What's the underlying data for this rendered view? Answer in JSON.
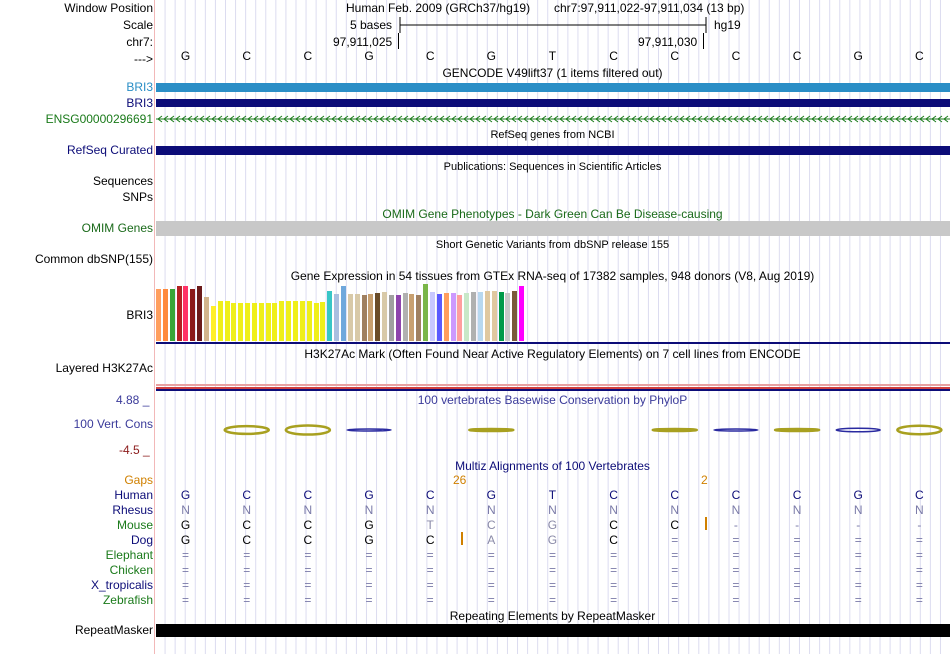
{
  "ruler": {
    "window_label": "Window Position",
    "scale_label": "Scale",
    "chrom_label": "chr7:",
    "arrow_label": "--->",
    "assembly": "Human Feb. 2009 (GRCh37/hg19)",
    "position": "chr7:97,911,022-97,911,034 (13 bp)",
    "scale_text": "5 bases",
    "scale_db": "hg19",
    "coord_left": "97,911,025",
    "coord_right": "97,911,030",
    "bases": [
      "G",
      "C",
      "C",
      "G",
      "C",
      "G",
      "T",
      "C",
      "C",
      "C",
      "C",
      "G",
      "C"
    ]
  },
  "gencode": {
    "title": "GENCODE V49lift37 (1 items filtered out)",
    "rows": [
      "BRI3",
      "BRI3",
      "ENSG00000296691"
    ],
    "colors": [
      "#2a8ec6",
      "#0c0c78",
      "#1a7a1a"
    ]
  },
  "refseq": {
    "title": "RefSeq genes from NCBI",
    "label": "RefSeq Curated",
    "color": "#0c0c78"
  },
  "pubs": {
    "title": "Publications: Sequences in Scientific Articles",
    "labels": [
      "Sequences",
      "SNPs"
    ]
  },
  "omim": {
    "title": "OMIM Gene Phenotypes - Dark Green Can Be Disease-causing",
    "label": "OMIM Genes",
    "color": "#c8c8c8",
    "text_color": "#1a6a1a"
  },
  "snp": {
    "title": "Short Genetic Variants from dbSNP release 155",
    "label": "Common dbSNP(155)"
  },
  "gtex": {
    "title": "Gene Expression in 54 tissues from GTEx RNA-seq of 17382 samples, 948 donors (V8, Aug 2019)",
    "label": "BRI3",
    "values": [
      0.92,
      0.92,
      0.92,
      0.96,
      0.96,
      0.92,
      0.96,
      0.78,
      0.62,
      0.7,
      0.7,
      0.66,
      0.66,
      0.66,
      0.66,
      0.66,
      0.66,
      0.66,
      0.7,
      0.7,
      0.7,
      0.7,
      0.7,
      0.66,
      0.68,
      0.88,
      0.82,
      0.96,
      0.82,
      0.82,
      0.8,
      0.82,
      0.84,
      0.86,
      0.8,
      0.8,
      0.84,
      0.82,
      0.8,
      1.0,
      0.86,
      0.82,
      0.84,
      0.84,
      0.8,
      0.84,
      0.86,
      0.86,
      0.88,
      0.88,
      0.86,
      0.84,
      0.88,
      0.96
    ],
    "colors": [
      "#ff9e5e",
      "#ff8a3c",
      "#37a637",
      "#b22222",
      "#ff3366",
      "#8b1a1a",
      "#6b1a1a",
      "#d2b48c",
      "#ffef2a",
      "#efef1a",
      "#efef1a",
      "#efef1a",
      "#efef1a",
      "#efef1a",
      "#efef1a",
      "#efef1a",
      "#efef1a",
      "#efef1a",
      "#efef1a",
      "#efef1a",
      "#efef1a",
      "#efef1a",
      "#efef1a",
      "#efef1a",
      "#efef1a",
      "#38c6c6",
      "#a9bfe0",
      "#6fa8dc",
      "#d8c9a8",
      "#d8c9a8",
      "#a08060",
      "#c8a070",
      "#6b4d2a",
      "#d8c9a8",
      "#a0a0a0",
      "#8e44ad",
      "#b0b0b0",
      "#c8a070",
      "#a08060",
      "#7ab648",
      "#c8c8ff",
      "#5a5aff",
      "#ff9e5e",
      "#cc99ff",
      "#ff9e9e",
      "#c8e8c8",
      "#b0b0b0",
      "#b8d8f0",
      "#e0c8a0",
      "#e0c8a0",
      "#009a49",
      "#c8c8c8",
      "#7a5a3a",
      "#ff00ff"
    ]
  },
  "h3k27ac": {
    "title": "H3K27Ac Mark (Often Found Near Active Regulatory Elements) on 7 cell lines from ENCODE",
    "label": "Layered H3K27Ac"
  },
  "phylop": {
    "title": "100 vertebrates Basewise Conservation by PhyloP",
    "label": "100 Vert. Cons",
    "max": "4.88 _",
    "min": "-4.5 _",
    "values": [
      0.0,
      1.1,
      1.3,
      -0.2,
      0.0,
      0.05,
      0.0,
      0.0,
      0.1,
      -0.1,
      0.1,
      -0.5,
      1.2
    ]
  },
  "multiz": {
    "title": "Multiz Alignments of 100 Vertebrates",
    "gaps_label": "Gaps",
    "gap_marks": [
      "26",
      "2"
    ],
    "species": [
      {
        "name": "Human",
        "color": "#0c0c78",
        "seq": [
          "G",
          "C",
          "C",
          "G",
          "C",
          "G",
          "T",
          "C",
          "C",
          "C",
          "C",
          "G",
          "C"
        ]
      },
      {
        "name": "Rhesus",
        "color": "#0c0c78",
        "seq": [
          "N",
          "N",
          "N",
          "N",
          "N",
          "N",
          "N",
          "N",
          "N",
          "N",
          "N",
          "N",
          "N"
        ]
      },
      {
        "name": "Mouse",
        "color": "#1a7a1a",
        "seq": [
          "G",
          "C",
          "C",
          "G",
          "T",
          "C",
          "G",
          "C",
          "C",
          "-",
          "-",
          "-",
          "-"
        ]
      },
      {
        "name": "Dog",
        "color": "#0c0c78",
        "seq": [
          "G",
          "C",
          "C",
          "G",
          "C",
          "A",
          "G",
          "C",
          "=",
          "=",
          "=",
          "=",
          "="
        ]
      },
      {
        "name": "Elephant",
        "color": "#1a7a1a",
        "seq": [
          "=",
          "=",
          "=",
          "=",
          "=",
          "=",
          "=",
          "=",
          "=",
          "=",
          "=",
          "=",
          "="
        ]
      },
      {
        "name": "Chicken",
        "color": "#1a7a1a",
        "seq": [
          "=",
          "=",
          "=",
          "=",
          "=",
          "=",
          "=",
          "=",
          "=",
          "=",
          "=",
          "=",
          "="
        ]
      },
      {
        "name": "X_tropicalis",
        "color": "#0c0c78",
        "seq": [
          "=",
          "=",
          "=",
          "=",
          "=",
          "=",
          "=",
          "=",
          "=",
          "=",
          "=",
          "=",
          "="
        ]
      },
      {
        "name": "Zebrafish",
        "color": "#1a7a1a",
        "seq": [
          "=",
          "=",
          "=",
          "=",
          "=",
          "=",
          "=",
          "=",
          "=",
          "=",
          "=",
          "=",
          "="
        ]
      }
    ]
  },
  "repeat": {
    "title": "Repeating Elements by RepeatMasker",
    "label": "RepeatMasker"
  }
}
